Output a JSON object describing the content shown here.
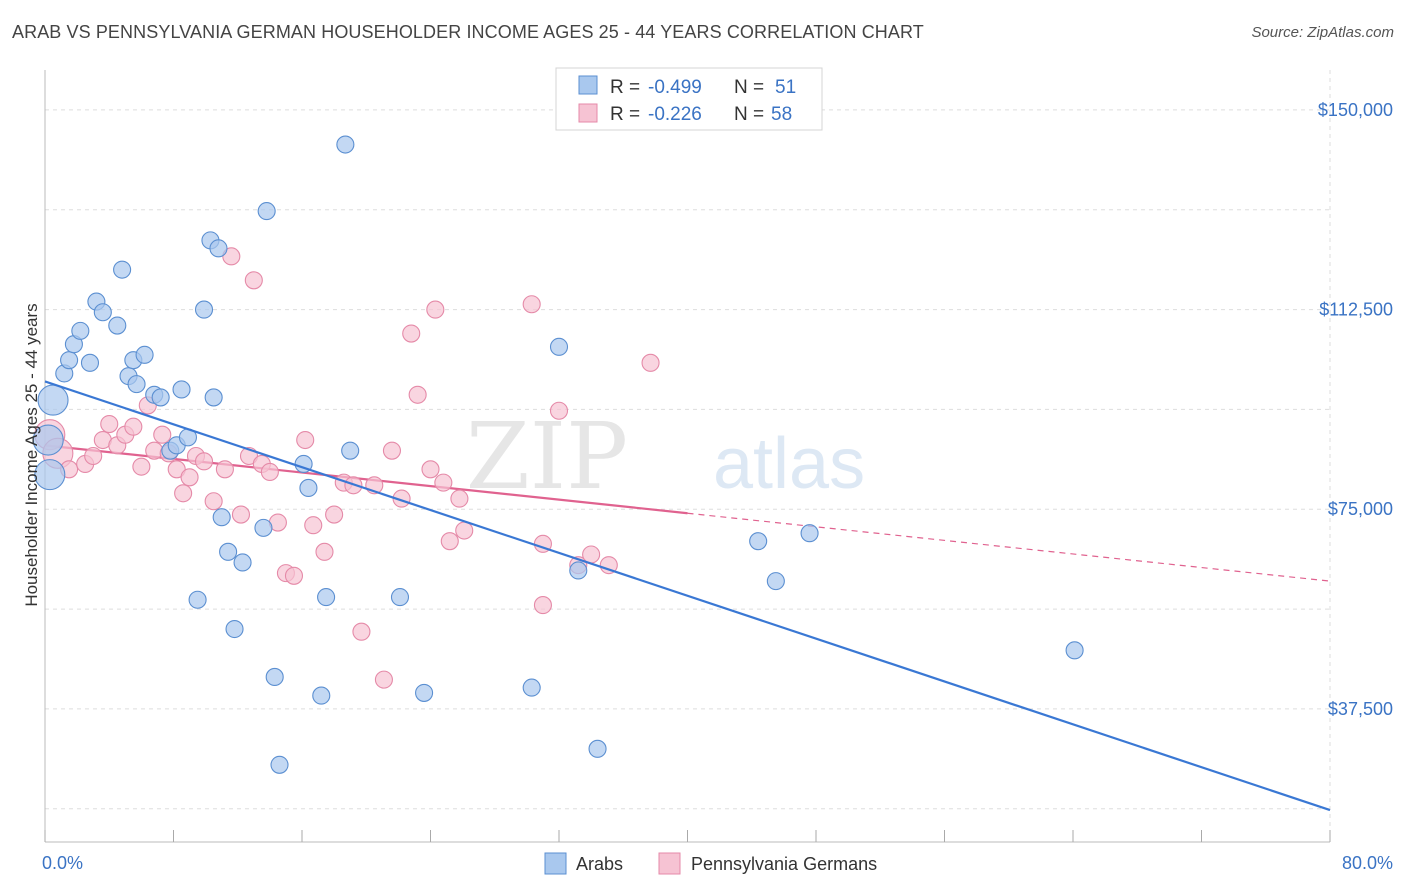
{
  "title": "ARAB VS PENNSYLVANIA GERMAN HOUSEHOLDER INCOME AGES 25 - 44 YEARS CORRELATION CHART",
  "source": "Source: ZipAtlas.com",
  "watermark": {
    "zip": "ZIP",
    "atlas": "atlas"
  },
  "colors": {
    "arabs_fill": "#a9c8ee",
    "arabs_stroke": "#5b8fd1",
    "arabs_line": "#3a78d4",
    "pg_fill": "#f6c3d3",
    "pg_stroke": "#e58aa8",
    "pg_line": "#e0628f",
    "grid": "#dddddd",
    "axis_label": "#3a73c4"
  },
  "legend": {
    "rows": [
      {
        "r_label": "R =",
        "r_value": "-0.499",
        "n_label": "N =",
        "n_value": "51"
      },
      {
        "r_label": "R =",
        "r_value": "-0.226",
        "n_label": "N =",
        "n_value": "58"
      }
    ]
  },
  "chart_data": {
    "type": "scatter",
    "title": "ARAB VS PENNSYLVANIA GERMAN HOUSEHOLDER INCOME AGES 25 - 44 YEARS CORRELATION CHART",
    "xlabel": "",
    "ylabel": "Householder Income Ages 25 - 44 years",
    "xlim": [
      0,
      80
    ],
    "ylim": [
      12500,
      157500
    ],
    "x_tick_labels": [
      "0.0%",
      "80.0%"
    ],
    "y_ticks": [
      37500,
      75000,
      112500,
      150000
    ],
    "y_tick_labels": [
      "$37,500",
      "$75,000",
      "$112,500",
      "$150,000"
    ],
    "grid": true,
    "legend_position": "top-center",
    "series": [
      {
        "name": "Arabs",
        "r": -0.499,
        "n": 51,
        "trend": {
          "x0": 0,
          "y0": 99000,
          "x1": 80,
          "y1": 18500,
          "solid_to": 80
        },
        "points": [
          [
            0.3,
            81500
          ],
          [
            0.5,
            95500
          ],
          [
            1.2,
            100500
          ],
          [
            1.5,
            103000
          ],
          [
            1.8,
            106000
          ],
          [
            2.2,
            108500
          ],
          [
            2.8,
            102500
          ],
          [
            3.2,
            114000
          ],
          [
            3.6,
            112000
          ],
          [
            4.5,
            109500
          ],
          [
            4.8,
            120000
          ],
          [
            5.2,
            100000
          ],
          [
            5.5,
            103000
          ],
          [
            5.7,
            98500
          ],
          [
            6.2,
            104000
          ],
          [
            6.8,
            96500
          ],
          [
            7.2,
            96000
          ],
          [
            7.8,
            86000
          ],
          [
            8.2,
            87000
          ],
          [
            8.5,
            97500
          ],
          [
            8.9,
            88500
          ],
          [
            9.5,
            58000
          ],
          [
            9.9,
            112500
          ],
          [
            10.3,
            125500
          ],
          [
            10.5,
            96000
          ],
          [
            10.8,
            124000
          ],
          [
            11.0,
            73500
          ],
          [
            11.4,
            67000
          ],
          [
            11.8,
            52500
          ],
          [
            12.3,
            65000
          ],
          [
            13.6,
            71500
          ],
          [
            13.8,
            131000
          ],
          [
            14.3,
            43500
          ],
          [
            14.6,
            27000
          ],
          [
            16.1,
            83500
          ],
          [
            16.4,
            79000
          ],
          [
            17.2,
            40000
          ],
          [
            17.5,
            58500
          ],
          [
            18.7,
            143500
          ],
          [
            19.0,
            86000
          ],
          [
            22.1,
            58500
          ],
          [
            23.6,
            40500
          ],
          [
            30.3,
            41500
          ],
          [
            32.0,
            105500
          ],
          [
            33.2,
            63500
          ],
          [
            34.4,
            30000
          ],
          [
            44.4,
            69000
          ],
          [
            45.5,
            61500
          ],
          [
            47.6,
            70500
          ],
          [
            64.1,
            48500
          ],
          [
            0.2,
            88000
          ]
        ]
      },
      {
        "name": "Pennsylvania Germans",
        "r": -0.226,
        "n": 58,
        "trend": {
          "x0": 0,
          "y0": 87000,
          "x1": 80,
          "y1": 61500,
          "solid_to": 40
        },
        "points": [
          [
            0.3,
            89000
          ],
          [
            0.8,
            85500
          ],
          [
            1.5,
            82500
          ],
          [
            2.5,
            83500
          ],
          [
            3.0,
            85000
          ],
          [
            3.6,
            88000
          ],
          [
            4.0,
            91000
          ],
          [
            4.5,
            87000
          ],
          [
            5.0,
            89000
          ],
          [
            5.5,
            90500
          ],
          [
            6.0,
            83000
          ],
          [
            6.4,
            94500
          ],
          [
            6.8,
            86000
          ],
          [
            7.3,
            89000
          ],
          [
            7.7,
            85500
          ],
          [
            8.2,
            82500
          ],
          [
            8.6,
            78000
          ],
          [
            9.0,
            81000
          ],
          [
            9.4,
            85000
          ],
          [
            9.9,
            84000
          ],
          [
            10.5,
            76500
          ],
          [
            11.2,
            82500
          ],
          [
            11.6,
            122500
          ],
          [
            12.2,
            74000
          ],
          [
            12.7,
            85000
          ],
          [
            13.0,
            118000
          ],
          [
            13.5,
            83500
          ],
          [
            14.0,
            82000
          ],
          [
            14.5,
            72500
          ],
          [
            15.0,
            63000
          ],
          [
            15.5,
            62500
          ],
          [
            16.2,
            88000
          ],
          [
            16.7,
            72000
          ],
          [
            17.4,
            67000
          ],
          [
            18.0,
            74000
          ],
          [
            18.6,
            80000
          ],
          [
            19.2,
            79500
          ],
          [
            19.7,
            52000
          ],
          [
            20.5,
            79500
          ],
          [
            21.1,
            43000
          ],
          [
            21.6,
            86000
          ],
          [
            22.2,
            77000
          ],
          [
            22.8,
            108000
          ],
          [
            23.2,
            96500
          ],
          [
            24.0,
            82500
          ],
          [
            24.3,
            112500
          ],
          [
            24.8,
            80000
          ],
          [
            25.2,
            69000
          ],
          [
            25.8,
            77000
          ],
          [
            26.1,
            71000
          ],
          [
            30.3,
            113500
          ],
          [
            31.0,
            57000
          ],
          [
            31.0,
            68500
          ],
          [
            32.0,
            93500
          ],
          [
            33.2,
            64500
          ],
          [
            34.0,
            66500
          ],
          [
            35.1,
            64500
          ],
          [
            37.7,
            102500
          ]
        ]
      }
    ]
  },
  "bottom_legend": [
    "Arabs",
    "Pennsylvania Germans"
  ]
}
